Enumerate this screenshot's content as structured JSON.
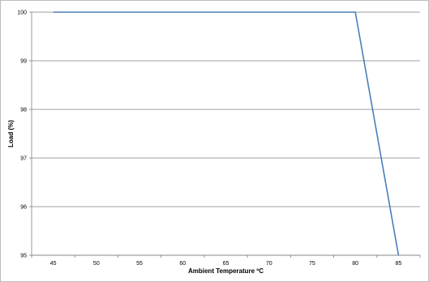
{
  "chart_data": {
    "type": "line",
    "title": "",
    "xlabel": "Ambient Temperature  ºC",
    "ylabel": "Load (%)",
    "x_ticks": [
      45,
      50,
      55,
      60,
      65,
      70,
      75,
      80,
      85
    ],
    "y_ticks": [
      95,
      96,
      97,
      98,
      99,
      100
    ],
    "xlim": [
      42.5,
      87.5
    ],
    "ylim": [
      95,
      100
    ],
    "grid": "horizontal",
    "legend": "none",
    "series": [
      {
        "color": "#4a7ebb",
        "x": [
          45,
          80,
          85
        ],
        "y": [
          100,
          100,
          95
        ]
      }
    ]
  }
}
